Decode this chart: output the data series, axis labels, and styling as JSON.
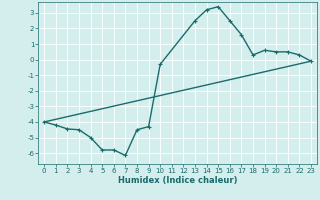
{
  "xlabel": "Humidex (Indice chaleur)",
  "ylabel": "",
  "bg_color": "#d4eeed",
  "line_color": "#1a6b6b",
  "grid_color": "#ffffff",
  "xlim": [
    -0.5,
    23.5
  ],
  "ylim": [
    -6.7,
    3.7
  ],
  "xticks": [
    0,
    1,
    2,
    3,
    4,
    5,
    6,
    7,
    8,
    9,
    10,
    11,
    12,
    13,
    14,
    15,
    16,
    17,
    18,
    19,
    20,
    21,
    22,
    23
  ],
  "yticks": [
    -6,
    -5,
    -4,
    -3,
    -2,
    -1,
    0,
    1,
    2,
    3
  ],
  "curve1_x": [
    0,
    1,
    2,
    3,
    4,
    5,
    6,
    7,
    8,
    9,
    10,
    13,
    14,
    15,
    16,
    17,
    18,
    19,
    20,
    21,
    22,
    23
  ],
  "curve1_y": [
    -4.0,
    -4.2,
    -4.45,
    -4.5,
    -5.0,
    -5.8,
    -5.8,
    -6.15,
    -4.5,
    -4.3,
    -0.3,
    2.5,
    3.2,
    3.4,
    2.5,
    1.6,
    0.3,
    0.6,
    0.5,
    0.5,
    0.3,
    -0.1
  ],
  "curve2_x": [
    0,
    23
  ],
  "curve2_y": [
    -4.0,
    -0.1
  ],
  "marker_size": 2.5,
  "line_width": 1.0,
  "tick_fontsize": 5.0,
  "xlabel_fontsize": 6.0
}
